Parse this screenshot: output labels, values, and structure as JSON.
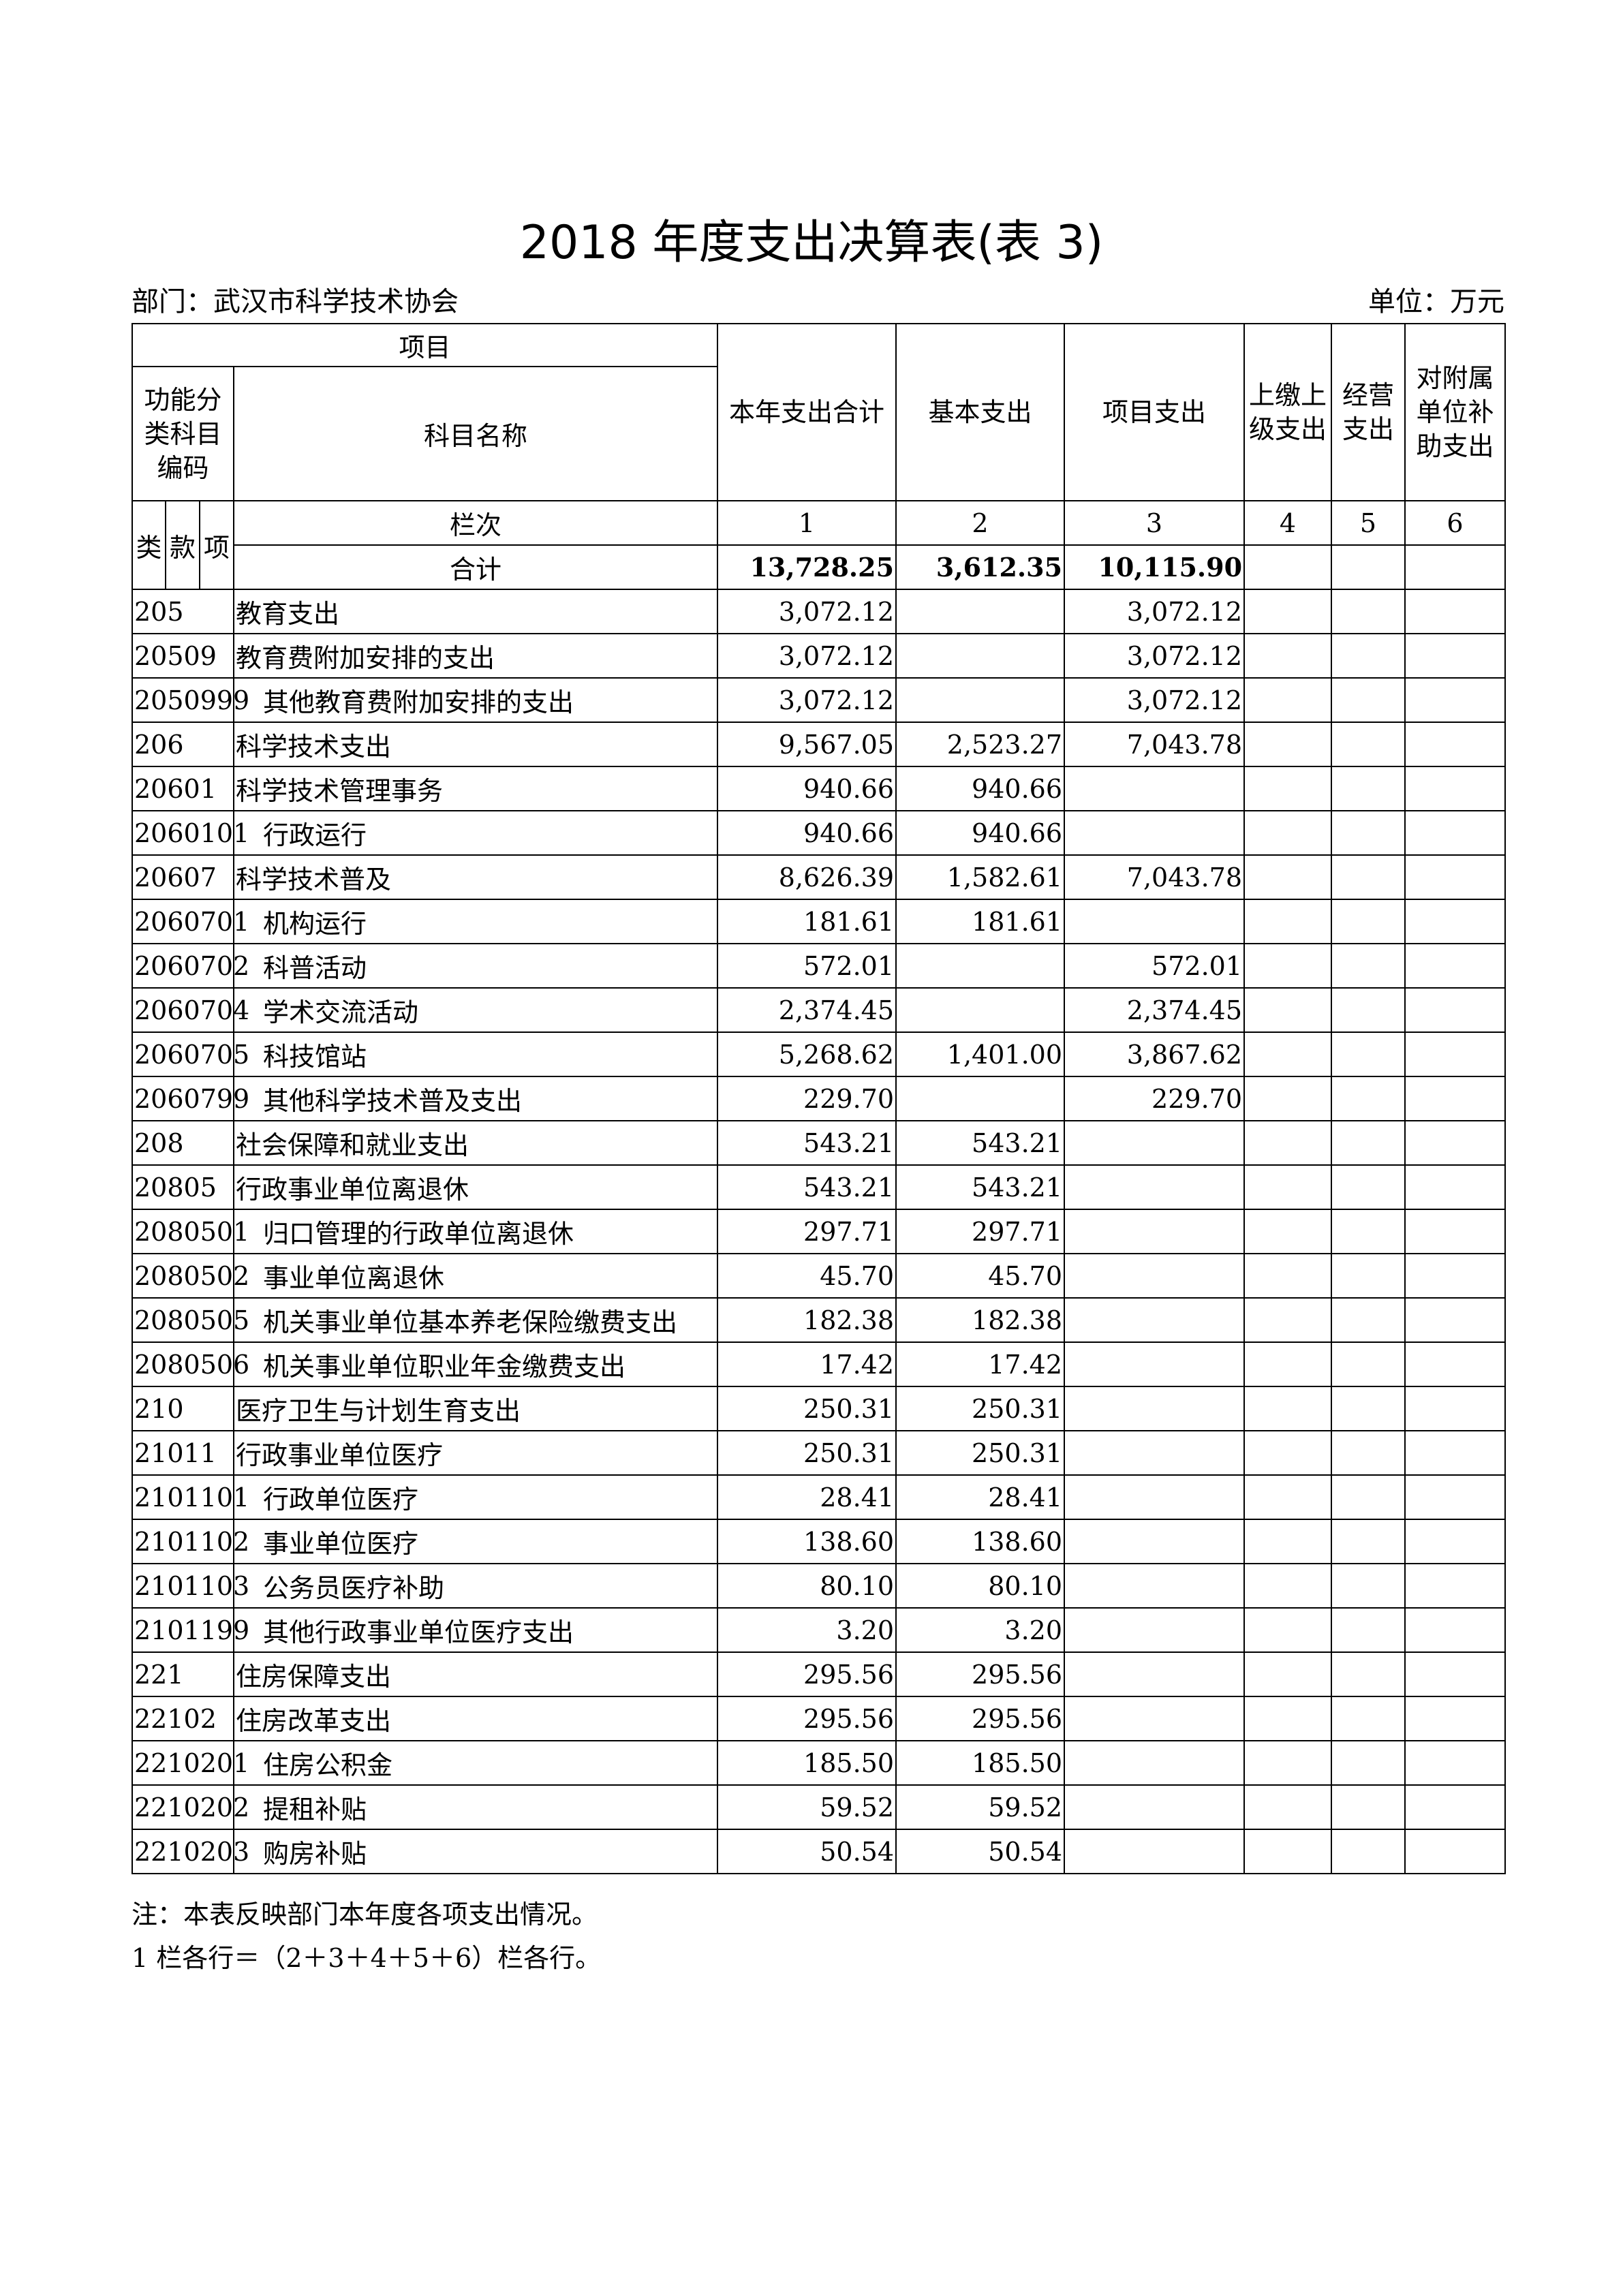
{
  "title": "2018 年度支出决算表(表 3)",
  "department": "部门：武汉市科学技术协会",
  "unit": "单位：万元",
  "header": {
    "item": "项目",
    "code": "功能分类科目编码",
    "name": "科目名称",
    "cols": [
      "本年支出合计",
      "基本支出",
      "项目支出",
      "上缴上级支出",
      "经营支出",
      "对附属单位补助支出"
    ],
    "lei": "类",
    "kuan": "款",
    "xiang": "项",
    "lanci": "栏次",
    "col_nums": [
      "1",
      "2",
      "3",
      "4",
      "5",
      "6"
    ],
    "total_label": "合计",
    "totals": [
      "13,728.25",
      "3,612.35",
      "10,115.90",
      "",
      "",
      ""
    ]
  },
  "rows": [
    {
      "code": "205",
      "name": "教育支出",
      "sub": false,
      "v": [
        "3,072.12",
        "",
        "3,072.12"
      ]
    },
    {
      "code": "20509",
      "name": "教育费附加安排的支出",
      "sub": false,
      "v": [
        "3,072.12",
        "",
        "3,072.12"
      ]
    },
    {
      "code": "2050999",
      "name": "其他教育费附加安排的支出",
      "sub": true,
      "v": [
        "3,072.12",
        "",
        "3,072.12"
      ]
    },
    {
      "code": "206",
      "name": "科学技术支出",
      "sub": false,
      "v": [
        "9,567.05",
        "2,523.27",
        "7,043.78"
      ]
    },
    {
      "code": "20601",
      "name": "科学技术管理事务",
      "sub": false,
      "v": [
        "940.66",
        "940.66",
        ""
      ]
    },
    {
      "code": "2060101",
      "name": "行政运行",
      "sub": true,
      "v": [
        "940.66",
        "940.66",
        ""
      ]
    },
    {
      "code": "20607",
      "name": "科学技术普及",
      "sub": false,
      "v": [
        "8,626.39",
        "1,582.61",
        "7,043.78"
      ]
    },
    {
      "code": "2060701",
      "name": "机构运行",
      "sub": true,
      "v": [
        "181.61",
        "181.61",
        ""
      ]
    },
    {
      "code": "2060702",
      "name": "科普活动",
      "sub": true,
      "v": [
        "572.01",
        "",
        "572.01"
      ]
    },
    {
      "code": "2060704",
      "name": "学术交流活动",
      "sub": true,
      "v": [
        "2,374.45",
        "",
        "2,374.45"
      ]
    },
    {
      "code": "2060705",
      "name": "科技馆站",
      "sub": true,
      "v": [
        "5,268.62",
        "1,401.00",
        "3,867.62"
      ]
    },
    {
      "code": "2060799",
      "name": "其他科学技术普及支出",
      "sub": true,
      "v": [
        "229.70",
        "",
        "229.70"
      ]
    },
    {
      "code": "208",
      "name": "社会保障和就业支出",
      "sub": false,
      "v": [
        "543.21",
        "543.21",
        ""
      ]
    },
    {
      "code": "20805",
      "name": "行政事业单位离退休",
      "sub": false,
      "v": [
        "543.21",
        "543.21",
        ""
      ]
    },
    {
      "code": "2080501",
      "name": "归口管理的行政单位离退休",
      "sub": true,
      "v": [
        "297.71",
        "297.71",
        ""
      ]
    },
    {
      "code": "2080502",
      "name": "事业单位离退休",
      "sub": true,
      "v": [
        "45.70",
        "45.70",
        ""
      ]
    },
    {
      "code": "2080505",
      "name": "机关事业单位基本养老保险缴费支出",
      "sub": true,
      "v": [
        "182.38",
        "182.38",
        ""
      ]
    },
    {
      "code": "2080506",
      "name": "机关事业单位职业年金缴费支出",
      "sub": true,
      "v": [
        "17.42",
        "17.42",
        ""
      ]
    },
    {
      "code": "210",
      "name": "医疗卫生与计划生育支出",
      "sub": false,
      "v": [
        "250.31",
        "250.31",
        ""
      ]
    },
    {
      "code": "21011",
      "name": "行政事业单位医疗",
      "sub": false,
      "v": [
        "250.31",
        "250.31",
        ""
      ]
    },
    {
      "code": "2101101",
      "name": "行政单位医疗",
      "sub": true,
      "v": [
        "28.41",
        "28.41",
        ""
      ]
    },
    {
      "code": "2101102",
      "name": "事业单位医疗",
      "sub": true,
      "v": [
        "138.60",
        "138.60",
        ""
      ]
    },
    {
      "code": "2101103",
      "name": "公务员医疗补助",
      "sub": true,
      "v": [
        "80.10",
        "80.10",
        ""
      ]
    },
    {
      "code": "2101199",
      "name": "其他行政事业单位医疗支出",
      "sub": true,
      "v": [
        "3.20",
        "3.20",
        ""
      ]
    },
    {
      "code": "221",
      "name": "住房保障支出",
      "sub": false,
      "v": [
        "295.56",
        "295.56",
        ""
      ]
    },
    {
      "code": "22102",
      "name": "住房改革支出",
      "sub": false,
      "v": [
        "295.56",
        "295.56",
        ""
      ]
    },
    {
      "code": "2210201",
      "name": "住房公积金",
      "sub": true,
      "v": [
        "185.50",
        "185.50",
        ""
      ]
    },
    {
      "code": "2210202",
      "name": "提租补贴",
      "sub": true,
      "v": [
        "59.52",
        "59.52",
        ""
      ]
    },
    {
      "code": "2210203",
      "name": "购房补贴",
      "sub": true,
      "v": [
        "50.54",
        "50.54",
        ""
      ]
    }
  ],
  "notes": [
    "注：本表反映部门本年度各项支出情况。",
    "1 栏各行＝（2＋3＋4＋5＋6）栏各行。"
  ]
}
